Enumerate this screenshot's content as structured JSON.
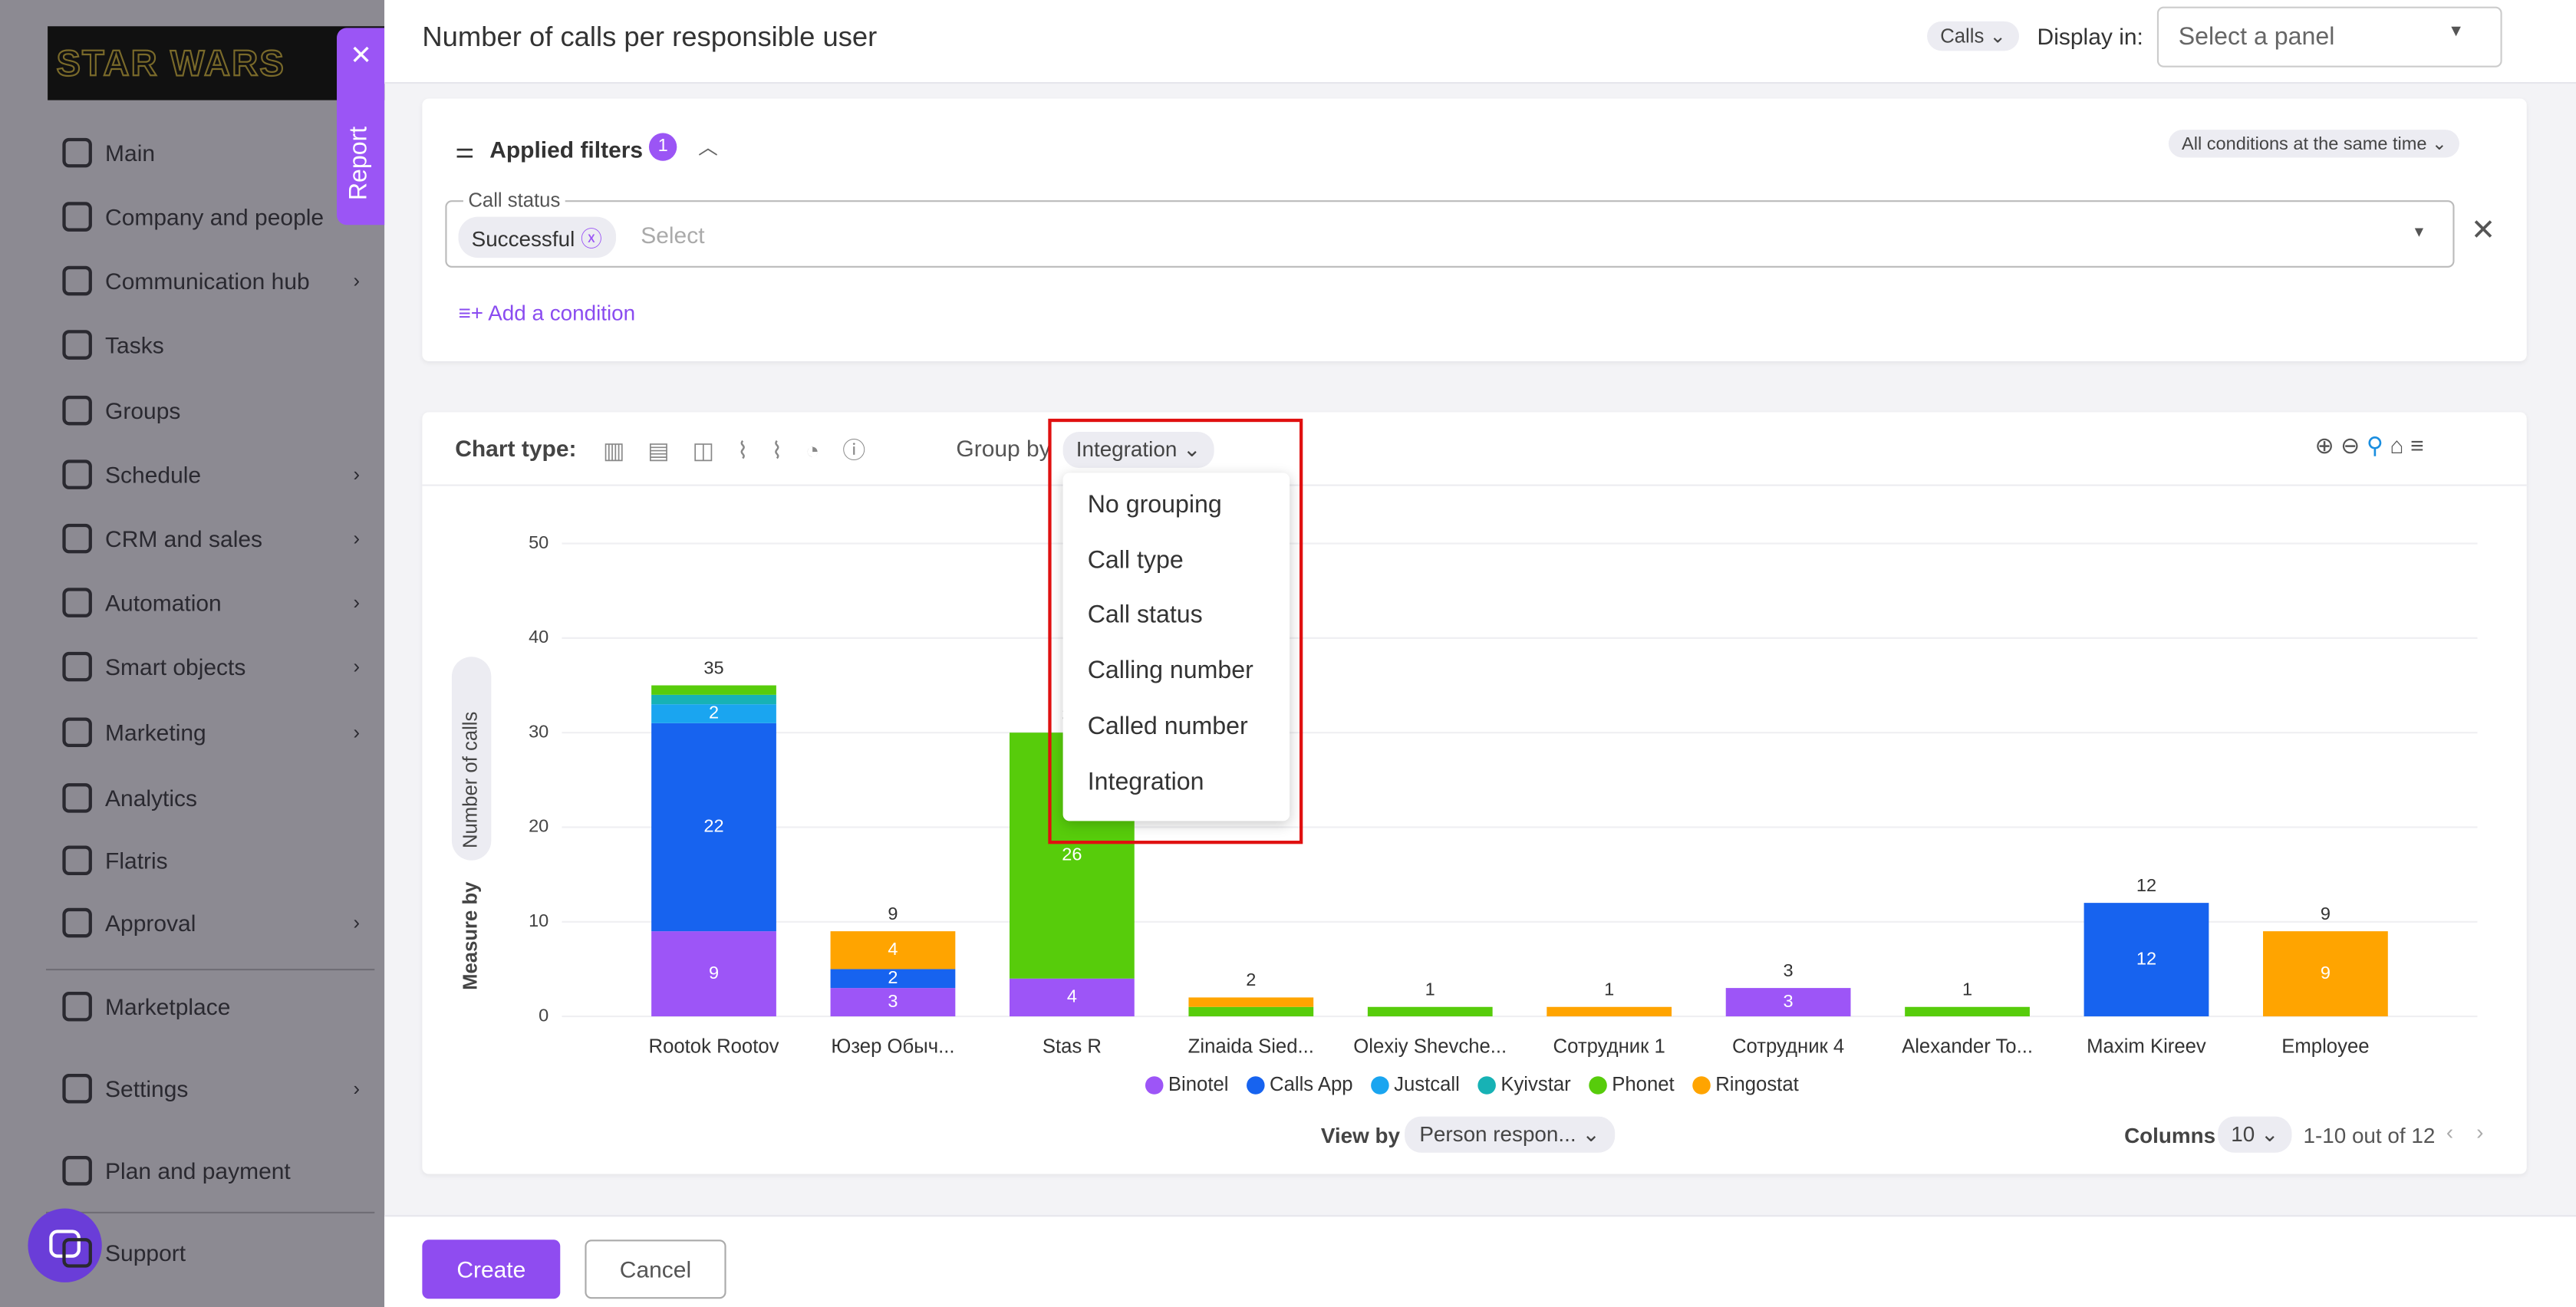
{
  "sidebar": {
    "logo": "STAR WARS",
    "items": [
      {
        "label": "Main",
        "submenu": false
      },
      {
        "label": "Company and people",
        "submenu": false
      },
      {
        "label": "Communication hub",
        "submenu": true
      },
      {
        "label": "Tasks",
        "submenu": false
      },
      {
        "label": "Groups",
        "submenu": false
      },
      {
        "label": "Schedule",
        "submenu": true
      },
      {
        "label": "CRM and sales",
        "submenu": true
      },
      {
        "label": "Automation",
        "submenu": true
      },
      {
        "label": "Smart objects",
        "submenu": true
      },
      {
        "label": "Marketing",
        "submenu": true
      },
      {
        "label": "Analytics",
        "submenu": false
      },
      {
        "label": "Flatris",
        "submenu": false
      },
      {
        "label": "Approval",
        "submenu": true
      },
      {
        "label": "Marketplace",
        "submenu": false
      },
      {
        "label": "Settings",
        "submenu": true
      },
      {
        "label": "Plan and payment",
        "submenu": false
      },
      {
        "label": "Support",
        "submenu": false
      }
    ]
  },
  "report_tab": "Report",
  "header": {
    "title": "Number of calls per responsible user",
    "type": "Calls",
    "display_in": "Display in:",
    "panel_placeholder": "Select a panel"
  },
  "filters": {
    "title": "Applied filters",
    "count": 1,
    "mode": "All conditions at the same time",
    "field": "Call status",
    "chip": "Successful",
    "placeholder": "Select",
    "add": "Add a condition"
  },
  "toolbar": {
    "chart_type": "Chart type:",
    "group_by": "Group by",
    "group_value": "Integration"
  },
  "dropdown": {
    "options": [
      "No grouping",
      "Call type",
      "Call status",
      "Calling number",
      "Called number",
      "Integration"
    ]
  },
  "chart_data": {
    "type": "stacked-bar",
    "y_label": "Number of calls",
    "measure_by": "Measure by",
    "categories": [
      "Rootok Rootov",
      "Юзер Обыч...",
      "Stas R",
      "Zinaida Sied...",
      "Olexiy Shevche...",
      "Сотрудник 1",
      "Сотрудник 4",
      "Alexander To...",
      "Maxim Kireev",
      "Employee"
    ],
    "series": [
      {
        "name": "Binotel",
        "color": "#9d55f7",
        "values": [
          9,
          3,
          4,
          0,
          0,
          0,
          3,
          0,
          0,
          0
        ]
      },
      {
        "name": "Calls App",
        "color": "#1763ef",
        "values": [
          22,
          2,
          0,
          0,
          0,
          0,
          0,
          0,
          12,
          0
        ]
      },
      {
        "name": "Justcall",
        "color": "#1aa5f0",
        "values": [
          2,
          0,
          0,
          0,
          0,
          0,
          0,
          0,
          0,
          0
        ]
      },
      {
        "name": "Kyivstar",
        "color": "#17b2b5",
        "values": [
          1,
          0,
          0,
          0,
          0,
          0,
          0,
          0,
          0,
          0
        ]
      },
      {
        "name": "Phonet",
        "color": "#57cc0b",
        "values": [
          1,
          0,
          26,
          1,
          1,
          0,
          0,
          1,
          0,
          0
        ]
      },
      {
        "name": "Ringostat",
        "color": "#ffa400",
        "values": [
          0,
          4,
          0,
          1,
          0,
          1,
          0,
          0,
          0,
          9
        ]
      }
    ],
    "totals": [
      35,
      9,
      30,
      2,
      1,
      1,
      3,
      1,
      12,
      9
    ],
    "ylim": [
      0,
      50
    ],
    "yticks": [
      0,
      10,
      20,
      30,
      40,
      50
    ],
    "grid": true
  },
  "footer_controls": {
    "view_by": "View by",
    "view_value": "Person respon...",
    "columns": "Columns",
    "columns_value": 10,
    "pagination": "1-10 out of 12"
  },
  "buttons": {
    "create": "Create",
    "cancel": "Cancel"
  }
}
